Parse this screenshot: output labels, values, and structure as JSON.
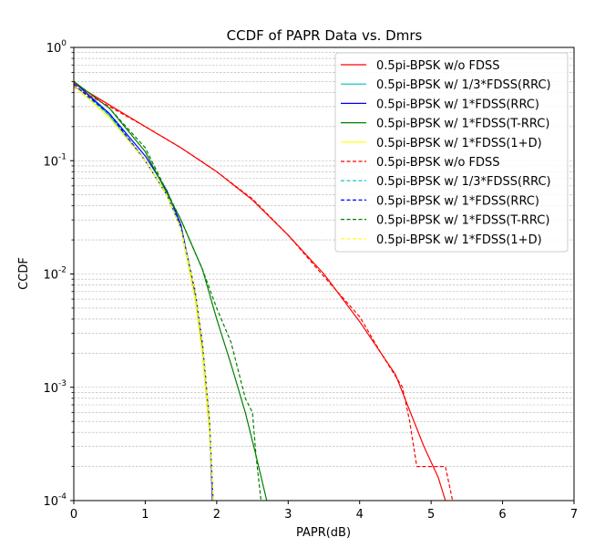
{
  "chart_data": {
    "type": "line",
    "title": "CCDF of PAPR Data vs. Dmrs",
    "xlabel": "PAPR(dB)",
    "ylabel": "CCDF",
    "xlim": [
      0,
      7
    ],
    "ylim": [
      0.0001,
      1
    ],
    "yscale": "log",
    "grid": "y-minor-dashed",
    "legend_position": "top-right",
    "x_ticks": [
      "0",
      "1",
      "2",
      "3",
      "4",
      "5",
      "6",
      "7"
    ],
    "y_ticks": [
      {
        "base": "10",
        "exp": "0"
      },
      {
        "base": "10",
        "exp": "-1"
      },
      {
        "base": "10",
        "exp": "-2"
      },
      {
        "base": "10",
        "exp": "-3"
      },
      {
        "base": "10",
        "exp": "-4"
      }
    ],
    "series": [
      {
        "name": "0.5pi-BPSK w/o FDSS",
        "color": "#ff0000",
        "dash": "solid",
        "points": [
          [
            0,
            0.48
          ],
          [
            0.5,
            0.31
          ],
          [
            1,
            0.2
          ],
          [
            1.5,
            0.13
          ],
          [
            2,
            0.08
          ],
          [
            2.5,
            0.045
          ],
          [
            3,
            0.022
          ],
          [
            3.5,
            0.01
          ],
          [
            4,
            0.0038
          ],
          [
            4.5,
            0.0013
          ],
          [
            4.9,
            0.0003
          ],
          [
            5.1,
            0.00016
          ],
          [
            5.2,
            0.0001
          ]
        ]
      },
      {
        "name": "0.5pi-BPSK w/ 1/3*FDSS(RRC)",
        "color": "#00bfbf",
        "dash": "solid",
        "points": [
          [
            0,
            0.5
          ],
          [
            0.5,
            0.25
          ],
          [
            1,
            0.1
          ],
          [
            1.3,
            0.05
          ],
          [
            1.5,
            0.025
          ],
          [
            1.7,
            0.006
          ],
          [
            1.8,
            0.002
          ],
          [
            1.9,
            0.0004
          ],
          [
            1.95,
            0.0001
          ]
        ]
      },
      {
        "name": "0.5pi-BPSK w/ 1*FDSS(RRC)",
        "color": "#0000ff",
        "dash": "solid",
        "points": [
          [
            0,
            0.5
          ],
          [
            0.5,
            0.26
          ],
          [
            1,
            0.11
          ],
          [
            1.3,
            0.055
          ],
          [
            1.5,
            0.027
          ],
          [
            1.7,
            0.0065
          ],
          [
            1.8,
            0.0022
          ],
          [
            1.9,
            0.00045
          ],
          [
            1.94,
            0.0001
          ]
        ]
      },
      {
        "name": "0.5pi-BPSK w/ 1*FDSS(T-RRC)",
        "color": "#008000",
        "dash": "solid",
        "points": [
          [
            0,
            0.5
          ],
          [
            0.5,
            0.29
          ],
          [
            1,
            0.12
          ],
          [
            1.5,
            0.03
          ],
          [
            1.8,
            0.011
          ],
          [
            2,
            0.004
          ],
          [
            2.2,
            0.0016
          ],
          [
            2.4,
            0.0006
          ],
          [
            2.55,
            0.00025
          ],
          [
            2.7,
            0.0001
          ]
        ]
      },
      {
        "name": "0.5pi-BPSK w/ 1*FDSS(1+D)",
        "color": "#ffff00",
        "dash": "solid",
        "points": [
          [
            0,
            0.46
          ],
          [
            0.5,
            0.24
          ],
          [
            1,
            0.1
          ],
          [
            1.3,
            0.05
          ],
          [
            1.5,
            0.025
          ],
          [
            1.7,
            0.006
          ],
          [
            1.8,
            0.002
          ],
          [
            1.9,
            0.0004
          ],
          [
            1.95,
            0.0001
          ]
        ]
      },
      {
        "name": "0.5pi-BPSK w/o FDSS",
        "color": "#ff0000",
        "dash": "dashed",
        "points": [
          [
            0,
            0.45
          ],
          [
            0.5,
            0.3
          ],
          [
            1,
            0.2
          ],
          [
            1.5,
            0.13
          ],
          [
            2,
            0.08
          ],
          [
            2.5,
            0.046
          ],
          [
            3,
            0.022
          ],
          [
            3.5,
            0.0095
          ],
          [
            4,
            0.0042
          ],
          [
            4.3,
            0.002
          ],
          [
            4.6,
            0.001
          ],
          [
            4.7,
            0.0005
          ],
          [
            4.8,
            0.0002
          ],
          [
            5.2,
            0.0002
          ],
          [
            5.3,
            0.0001
          ]
        ]
      },
      {
        "name": "0.5pi-BPSK w/ 1/3*FDSS(RRC)",
        "color": "#00bfbf",
        "dash": "dashed",
        "points": [
          [
            0,
            0.47
          ],
          [
            0.5,
            0.25
          ],
          [
            1,
            0.1
          ],
          [
            1.3,
            0.05
          ],
          [
            1.5,
            0.025
          ],
          [
            1.7,
            0.007
          ],
          [
            1.8,
            0.0025
          ],
          [
            1.9,
            0.0005
          ],
          [
            1.95,
            0.0001
          ]
        ]
      },
      {
        "name": "0.5pi-BPSK w/ 1*FDSS(RRC)",
        "color": "#0000ff",
        "dash": "dashed",
        "points": [
          [
            0,
            0.47
          ],
          [
            0.5,
            0.26
          ],
          [
            1,
            0.1
          ],
          [
            1.3,
            0.05
          ],
          [
            1.5,
            0.026
          ],
          [
            1.7,
            0.007
          ],
          [
            1.8,
            0.0025
          ],
          [
            1.9,
            0.0005
          ],
          [
            1.95,
            0.0001
          ]
        ]
      },
      {
        "name": "0.5pi-BPSK w/ 1*FDSS(T-RRC)",
        "color": "#008000",
        "dash": "dashed",
        "points": [
          [
            0,
            0.5
          ],
          [
            0.5,
            0.29
          ],
          [
            1,
            0.13
          ],
          [
            1.5,
            0.03
          ],
          [
            1.8,
            0.011
          ],
          [
            2,
            0.005
          ],
          [
            2.2,
            0.0025
          ],
          [
            2.4,
            0.0008
          ],
          [
            2.5,
            0.0006
          ],
          [
            2.55,
            0.00025
          ],
          [
            2.62,
            0.0001
          ]
        ]
      },
      {
        "name": "0.5pi-BPSK w/ 1*FDSS(1+D)",
        "color": "#ffff00",
        "dash": "dashed",
        "points": [
          [
            0,
            0.46
          ],
          [
            0.5,
            0.24
          ],
          [
            1,
            0.1
          ],
          [
            1.3,
            0.05
          ],
          [
            1.5,
            0.025
          ],
          [
            1.7,
            0.007
          ],
          [
            1.8,
            0.0025
          ],
          [
            1.9,
            0.0005
          ],
          [
            1.95,
            0.0001
          ]
        ]
      }
    ]
  }
}
